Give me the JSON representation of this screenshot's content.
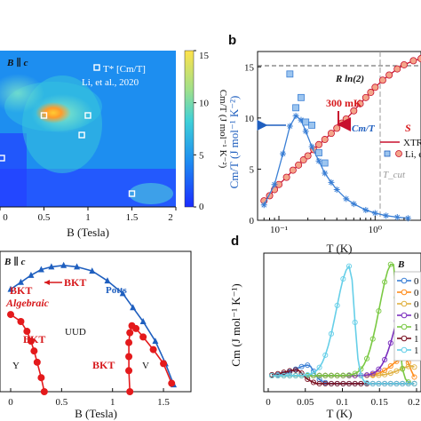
{
  "panel_letters": {
    "b": "b",
    "d": "d"
  },
  "chart_data": [
    {
      "id": "panel_a",
      "type": "heatmap",
      "annotation_text": "B ∥ c",
      "legend_entry": "T* [Cm/T]",
      "legend_source": "Li, et al., 2020",
      "xlabel": "B (Tesla)",
      "x_ticks": [
        "0",
        "0.5",
        "1",
        "1.5",
        "2"
      ],
      "xlim": [
        0,
        2
      ],
      "colorbar": {
        "label": "Cm/T (J mol⁻¹ K⁻²)",
        "ticks": [
          "15",
          "10",
          "5",
          "0"
        ],
        "range": [
          0,
          15
        ]
      },
      "hotspot": {
        "B": 0.65,
        "level": 15
      },
      "markers": [
        {
          "B": 0.5
        },
        {
          "B": 0.93
        },
        {
          "B": 1.0
        },
        {
          "B": 1.5
        },
        {
          "B": 0.0
        }
      ]
    },
    {
      "id": "panel_b",
      "type": "scatter",
      "annotation_text": "R ln(2)",
      "ylabel": "Cm/T (J mol⁻¹ K⁻²)",
      "xlabel": "T (K)",
      "x_scale": "log",
      "xlim": [
        0.06,
        3
      ],
      "x_ticks": [
        "10⁻¹",
        "10⁰"
      ],
      "ylim": [
        0,
        16.5
      ],
      "y_ticks": [
        "0",
        "5",
        "10",
        "15"
      ],
      "arrow_label": "300 mK",
      "tcut_label": "T_cut",
      "legend": [
        "Cm/T",
        "S",
        "XTRG",
        "Li, et al."
      ],
      "series": [
        {
          "name": "XTRG",
          "x": [
            0.07,
            0.09,
            0.11,
            0.13,
            0.15,
            0.17,
            0.19,
            0.22,
            0.26,
            0.3,
            0.35,
            0.4,
            0.5,
            0.6,
            0.8,
            1.0,
            1.3,
            1.7,
            2.2
          ],
          "y": [
            1.5,
            3.5,
            6.5,
            9.2,
            10.2,
            9.8,
            8.7,
            7.2,
            5.8,
            4.6,
            3.7,
            3.0,
            2.1,
            1.6,
            1.0,
            0.7,
            0.45,
            0.3,
            0.2
          ]
        },
        {
          "name": "Li, et al.",
          "x": [
            0.13,
            0.15,
            0.17,
            0.19,
            0.22,
            0.26,
            0.3
          ],
          "y": [
            14.3,
            11.0,
            12.0,
            9.6,
            9.3,
            6.6,
            5.6
          ]
        },
        {
          "name": "S",
          "x": [
            0.07,
            0.08,
            0.09,
            0.1,
            0.12,
            0.14,
            0.16,
            0.18,
            0.2,
            0.23,
            0.26,
            0.3,
            0.35,
            0.4,
            0.45,
            0.5,
            0.6,
            0.7,
            0.8,
            0.9,
            1.0,
            1.2,
            1.4,
            1.7,
            2.0,
            2.5,
            3.0
          ],
          "y": [
            1.9,
            2.4,
            3.0,
            3.5,
            4.2,
            4.9,
            5.4,
            5.9,
            6.3,
            6.9,
            7.4,
            7.9,
            8.5,
            9.0,
            9.5,
            9.9,
            10.7,
            11.4,
            12.0,
            12.5,
            13.0,
            13.7,
            14.2,
            14.8,
            15.2,
            15.6,
            15.8
          ]
        }
      ]
    },
    {
      "id": "panel_c",
      "type": "line",
      "annotation_text": "B ∥ c",
      "xlabel": "B (Tesla)",
      "xlim": [
        0,
        1.7
      ],
      "x_ticks": [
        "0",
        "0.5",
        "1",
        "1.5"
      ],
      "phase_labels": {
        "potts": "Potts",
        "bkt_top": "BKT",
        "algebraic": "Algebraic",
        "bkt_left": "BKT",
        "uud": "UUD",
        "bkt_right": "BKT",
        "y": "Y",
        "v": "V"
      },
      "series": [
        {
          "name": "Potts",
          "x": [
            0.0,
            0.1,
            0.2,
            0.3,
            0.4,
            0.52,
            0.65,
            0.8,
            0.95,
            1.1,
            1.2,
            1.3,
            1.42,
            1.52,
            1.6
          ],
          "y": [
            0.73,
            0.78,
            0.83,
            0.87,
            0.89,
            0.9,
            0.89,
            0.86,
            0.79,
            0.7,
            0.6,
            0.5,
            0.36,
            0.2,
            0.05
          ]
        },
        {
          "name": "BKT_left",
          "x": [
            0.0,
            0.1,
            0.16,
            0.2,
            0.23,
            0.26,
            0.3,
            0.33
          ],
          "y": [
            0.55,
            0.5,
            0.43,
            0.36,
            0.29,
            0.21,
            0.1,
            0.0
          ]
        },
        {
          "name": "BKT_right",
          "x": [
            1.17,
            1.16,
            1.16,
            1.16,
            1.17,
            1.19,
            1.23,
            1.3,
            1.4,
            1.5,
            1.58
          ],
          "y": [
            0.0,
            0.15,
            0.25,
            0.35,
            0.42,
            0.47,
            0.45,
            0.39,
            0.3,
            0.2,
            0.06
          ]
        }
      ]
    },
    {
      "id": "panel_d",
      "type": "line",
      "ylabel": "Cm (J mol⁻¹ K⁻¹)",
      "xlabel": "T (K)",
      "xlim": [
        0,
        0.2
      ],
      "x_ticks": [
        "0",
        "0.05",
        "0.1",
        "0.15",
        "0.2"
      ],
      "legend_title": "B",
      "legend_labels": [
        "0",
        "0",
        "0",
        "0",
        "1",
        "1",
        "1"
      ],
      "series": [
        {
          "color": "#3a7fd5",
          "peak_T": 0.055,
          "peak_C": 1.65
        },
        {
          "color": "#ff8c1a",
          "peak_T": 0.185,
          "peak_C": 2.1
        },
        {
          "color": "#e0b040",
          "peak_T": 0.195,
          "peak_C": 1.6
        },
        {
          "color": "#7b2fbf",
          "peak_T": 0.19,
          "peak_C": 6.3
        },
        {
          "color": "#7ac943",
          "peak_T": 0.168,
          "peak_C": 8.0
        },
        {
          "color": "#7a1020",
          "peak_T": 0.04,
          "peak_C": 1.35
        },
        {
          "color": "#66cfe8",
          "peak_T": 0.11,
          "peak_C": 7.8
        }
      ]
    }
  ]
}
